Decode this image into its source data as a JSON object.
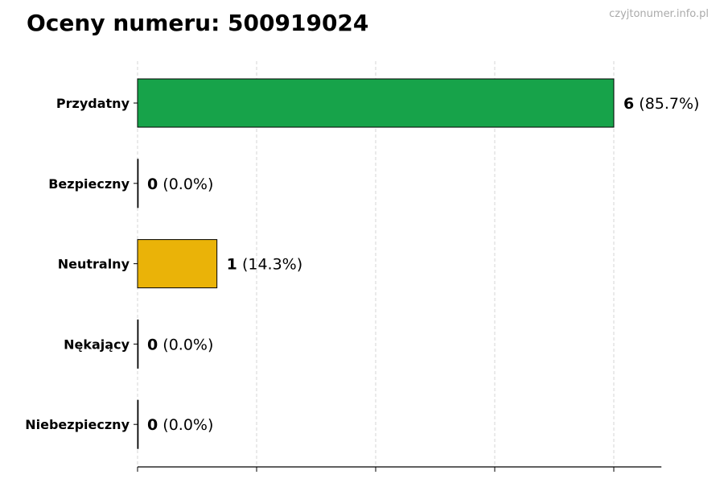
{
  "title": "Oceny numeru: 500919024",
  "watermark": "czyjtonumer.info.pl",
  "chart_data": {
    "type": "bar",
    "orientation": "horizontal",
    "title": "Oceny numeru: 500919024",
    "categories": [
      "Przydatny",
      "Bezpieczny",
      "Neutralny",
      "Nękający",
      "Niebezpieczny"
    ],
    "values": [
      6,
      0,
      1,
      0,
      0
    ],
    "value_labels": [
      "6",
      "0",
      "1",
      "0",
      "0"
    ],
    "percent_labels": [
      "(85.7%)",
      "(0.0%)",
      "(14.3%)",
      "(0.0%)",
      "(0.0%)"
    ],
    "colors": [
      "#17a34a",
      "#17a34a",
      "#eab308",
      "#dc2626",
      "#dc2626"
    ],
    "xlim": [
      0,
      6.6
    ],
    "xticks": [
      0,
      1.5,
      3,
      4.5,
      6
    ],
    "grid": "x-dashed",
    "xlabel": "",
    "ylabel": ""
  }
}
